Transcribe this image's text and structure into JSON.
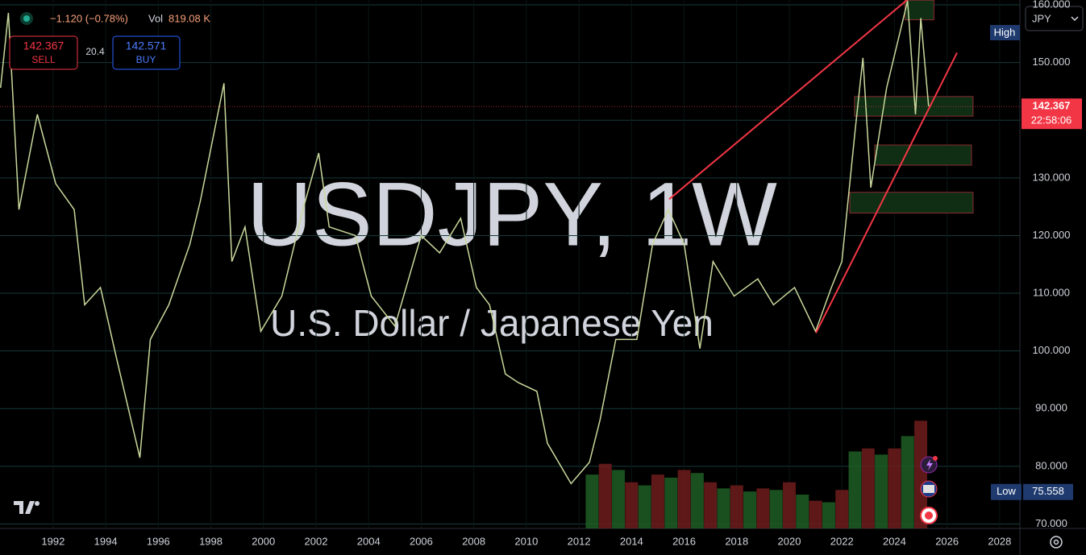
{
  "header": {
    "change": "−1.120 (−0.78%)",
    "vol_label": "Vol",
    "vol_value": "819.08 K"
  },
  "trade": {
    "sell_price": "142.367",
    "sell_label": "SELL",
    "spread": "20.4",
    "buy_price": "142.571",
    "buy_label": "BUY"
  },
  "currency": "JPY",
  "chart_data": {
    "type": "line",
    "title": "USDJPY, 1W",
    "subtitle": "U.S. Dollar / Japanese Yen",
    "color": "#c9d89c",
    "x": [
      1990.0,
      1990.3,
      1990.7,
      1991.4,
      1992.1,
      1992.8,
      1993.2,
      1993.8,
      1994.4,
      1995.3,
      1995.7,
      1996.4,
      1997.2,
      1997.6,
      1998.5,
      1998.8,
      1999.3,
      1999.9,
      2000.7,
      2001.5,
      2002.1,
      2002.5,
      2003.5,
      2004.1,
      2005.0,
      2006.0,
      2006.7,
      2007.5,
      2008.1,
      2008.6,
      2009.2,
      2009.7,
      2010.4,
      2010.8,
      2011.7,
      2012.4,
      2012.8,
      2013.4,
      2014.2,
      2014.8,
      2015.4,
      2016.0,
      2016.6,
      2017.1,
      2017.9,
      2018.8,
      2019.4,
      2020.2,
      2021.0,
      2021.6,
      2022.0,
      2022.5,
      2022.8,
      2023.1,
      2023.7,
      2024.5,
      2024.8,
      2025.0,
      2025.3
    ],
    "values": [
      145.6,
      158.6,
      124.5,
      141,
      129,
      124.5,
      108,
      111,
      99,
      81.5,
      102,
      108,
      118.5,
      126,
      146.4,
      115.5,
      121.5,
      103.4,
      109.5,
      124.5,
      134.3,
      121.5,
      120,
      109.5,
      104.3,
      120,
      117,
      123,
      111,
      108,
      96,
      94.5,
      93,
      84,
      77,
      80.7,
      88,
      102,
      102,
      118.5,
      124.5,
      118.5,
      100.4,
      115.5,
      109.5,
      112.5,
      108,
      111,
      103.4,
      111,
      115.5,
      138,
      150.8,
      128.3,
      145.6,
      160.7,
      141,
      157.7,
      142.4
    ],
    "volume": {
      "x": [
        2012.5,
        2013.0,
        2013.5,
        2014.0,
        2014.5,
        2015.0,
        2015.5,
        2016.0,
        2016.5,
        2017.0,
        2017.5,
        2018.0,
        2018.5,
        2019.0,
        2019.5,
        2020.0,
        2020.5,
        2021.0,
        2021.5,
        2022.0,
        2022.5,
        2023.0,
        2023.5,
        2024.0,
        2024.5,
        2025.0
      ],
      "values": [
        350,
        420,
        380,
        300,
        280,
        350,
        330,
        380,
        360,
        300,
        260,
        280,
        240,
        260,
        250,
        300,
        220,
        180,
        170,
        250,
        500,
        520,
        480,
        520,
        600,
        700
      ],
      "colors": [
        "#1f5e25",
        "#6e1c1c"
      ],
      "vlim": [
        0,
        1000
      ]
    },
    "xlim": [
      1989.98,
      2028.77
    ],
    "ylim": [
      69.24,
      160.83
    ],
    "xticks": [
      1992,
      1994,
      1996,
      1998,
      2000,
      2002,
      2004,
      2006,
      2008,
      2010,
      2012,
      2014,
      2016,
      2018,
      2020,
      2022,
      2024,
      2026,
      2028
    ],
    "yticks": [
      {
        "value": 70,
        "label": "70.000"
      },
      {
        "value": 80,
        "label": "80.000"
      },
      {
        "value": 90,
        "label": "90.000"
      },
      {
        "value": 100,
        "label": "100.000"
      },
      {
        "value": 110,
        "label": "110.000"
      },
      {
        "value": 120,
        "label": "120.000"
      },
      {
        "value": 130,
        "label": "130.000"
      },
      {
        "value": 140,
        "label": "140.000"
      },
      {
        "value": 150,
        "label": "150.000"
      },
      {
        "value": 160,
        "label": "160.000"
      }
    ],
    "grid": true,
    "trendlines": [
      {
        "x": [
          2015.43,
          2024.94
        ],
        "y": [
          126.3,
          162.6
        ],
        "color": "#f23645"
      },
      {
        "x": [
          2021.01,
          2026.38
        ],
        "y": [
          103.1,
          151.7
        ],
        "color": "#f23645"
      }
    ],
    "zones": [
      {
        "x": [
          2024.4,
          2025.5
        ],
        "y": [
          157.4,
          160.8
        ]
      },
      {
        "x": [
          2022.48,
          2026.99
        ],
        "y": [
          140.7,
          144.1
        ]
      },
      {
        "x": [
          2023.25,
          2026.93
        ],
        "y": [
          132.2,
          135.7
        ]
      },
      {
        "x": [
          2022.3,
          2026.99
        ],
        "y": [
          123.9,
          127.5
        ]
      }
    ],
    "last_price": 142.367,
    "countdown": "22:58:06",
    "high_label": "High",
    "low_label": "Low",
    "low": 75.558
  }
}
